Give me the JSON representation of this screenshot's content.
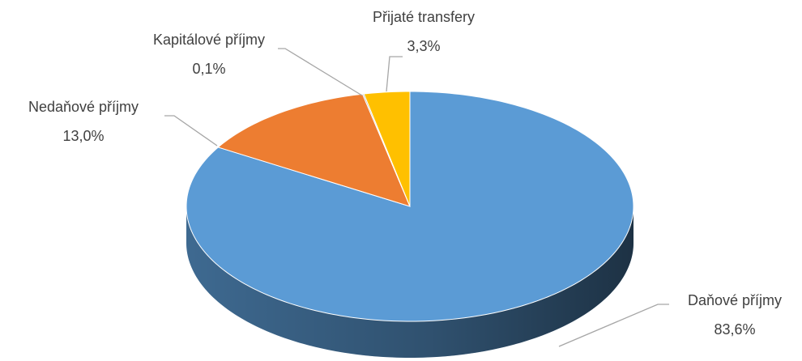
{
  "chart_data": {
    "type": "pie",
    "categories": [
      "Daňové příjmy",
      "Nedaňové příjmy",
      "Kapitálové příjmy",
      "Přijaté transfery"
    ],
    "values": [
      83.6,
      13.0,
      0.1,
      3.3
    ],
    "value_labels": [
      "83,6%",
      "13,0%",
      "0,1%",
      "3,3%"
    ],
    "colors": [
      "#5b9bd5",
      "#ed7d31",
      "#a5a5a5",
      "#ffc000"
    ]
  }
}
